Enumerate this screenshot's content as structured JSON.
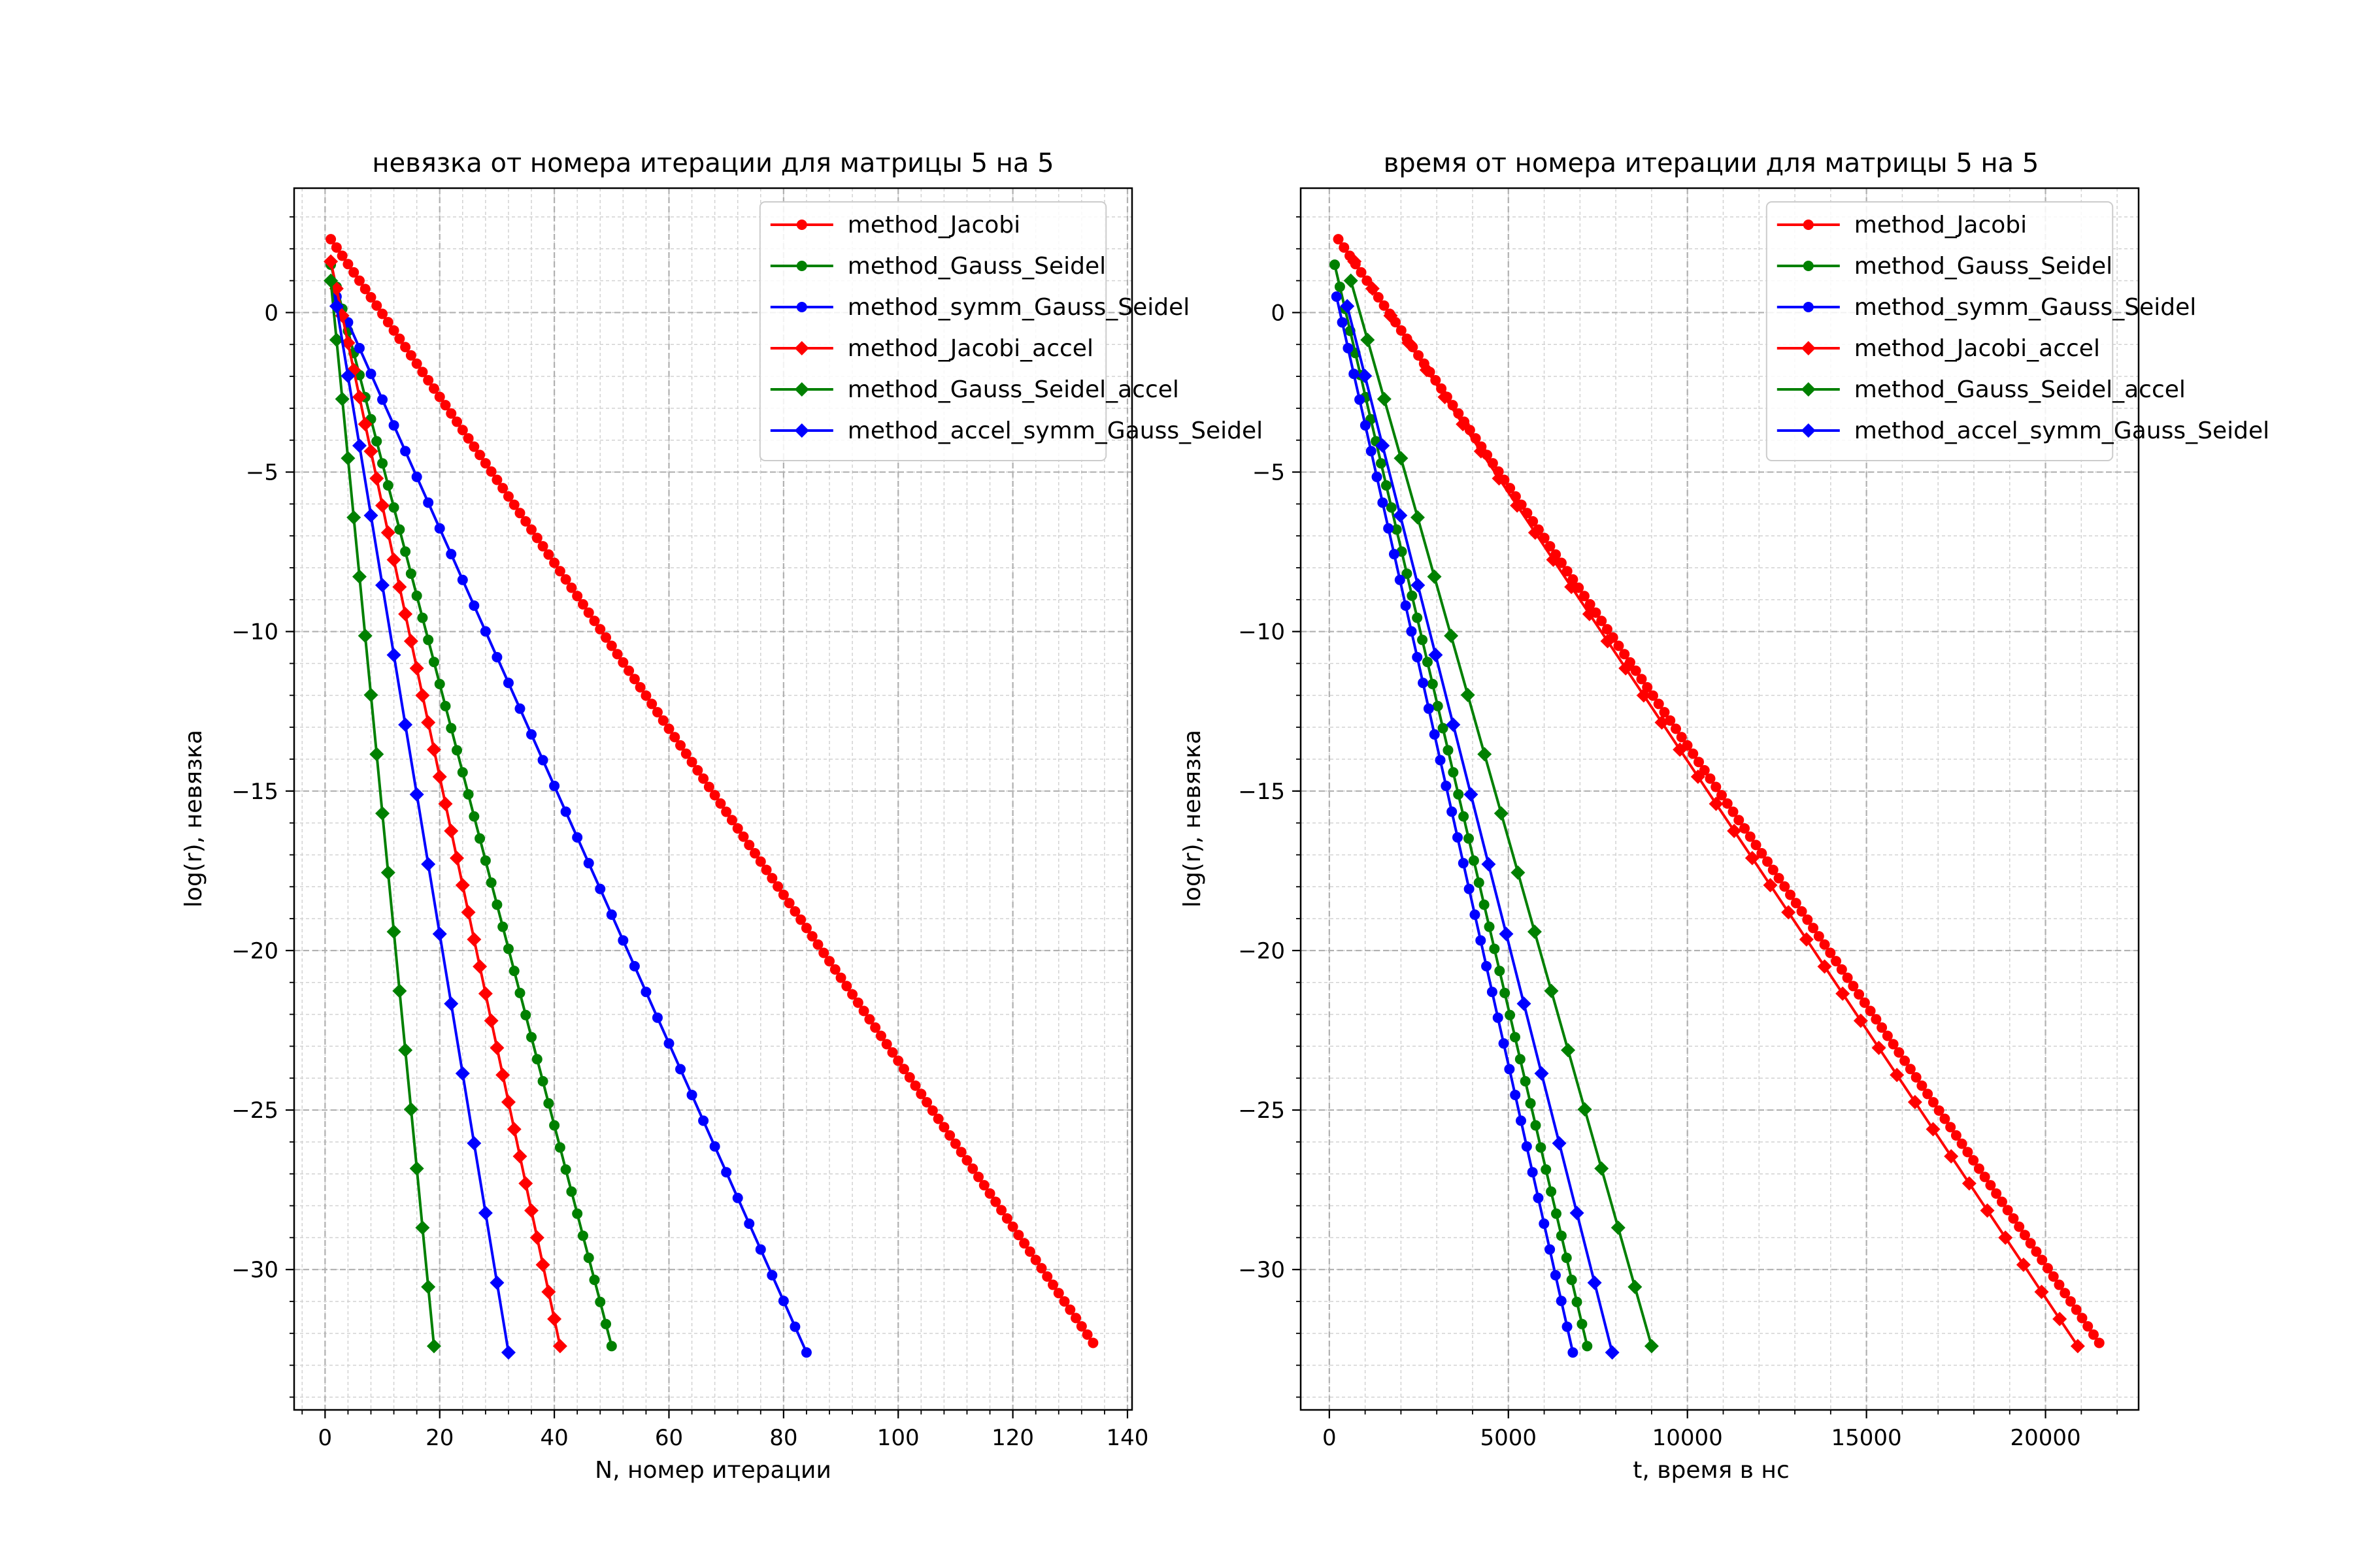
{
  "chart_data": [
    {
      "type": "line",
      "title": "невязка от номера итерации для матрицы 5 на 5",
      "xlabel": "N, номер итерации",
      "ylabel": "log(r), невязка",
      "xlim": [
        -5.4,
        140.8
      ],
      "ylim": [
        -34.4,
        3.9
      ],
      "xticks": [
        0,
        20,
        40,
        60,
        80,
        100,
        120,
        140
      ],
      "yticks": [
        0,
        -5,
        -10,
        -15,
        -20,
        -25,
        -30
      ],
      "grid": true,
      "minor_grid": true,
      "legend_position": "top-right",
      "series": [
        {
          "name": "method_Jacobi",
          "color": "#ff0000",
          "marker": "circle",
          "x_start": 1,
          "x_end": 134,
          "n": 134,
          "y_start": 2.3,
          "y_end": -32.3
        },
        {
          "name": "method_Gauss_Seidel",
          "color": "#008000",
          "marker": "circle",
          "x_start": 1,
          "x_end": 50,
          "n": 50,
          "y_start": 1.5,
          "y_end": -32.4
        },
        {
          "name": "method_symm_Gauss_Seidel",
          "color": "#0000ff",
          "marker": "circle",
          "x_start": 2,
          "x_end": 84,
          "n": 42,
          "y_start": 0.5,
          "y_end": -32.6
        },
        {
          "name": "method_Jacobi_accel",
          "color": "#ff0000",
          "marker": "diamond",
          "x_start": 1,
          "x_end": 41,
          "n": 41,
          "y_start": 1.6,
          "y_end": -32.4
        },
        {
          "name": "method_Gauss_Seidel_accel",
          "color": "#008000",
          "marker": "diamond",
          "x_start": 1,
          "x_end": 19,
          "n": 19,
          "y_start": 1.0,
          "y_end": -32.4
        },
        {
          "name": "method_accel_symm_Gauss_Seidel",
          "color": "#0000ff",
          "marker": "diamond",
          "x_start": 2,
          "x_end": 32,
          "n": 16,
          "y_start": 0.2,
          "y_end": -32.6
        }
      ]
    },
    {
      "type": "line",
      "title": "время от номера итерации для матрицы 5 на 5",
      "xlabel": "t, время в нс",
      "ylabel": "log(r), невязка",
      "xlim": [
        -800,
        22600
      ],
      "ylim": [
        -34.4,
        3.9
      ],
      "xticks": [
        0,
        5000,
        10000,
        15000,
        20000
      ],
      "yticks": [
        0,
        -5,
        -10,
        -15,
        -20,
        -25,
        -30
      ],
      "grid": true,
      "minor_grid": true,
      "legend_position": "top-right",
      "series": [
        {
          "name": "method_Jacobi",
          "color": "#ff0000",
          "marker": "circle",
          "x_start": 250,
          "x_end": 21500,
          "n": 134,
          "y_start": 2.3,
          "y_end": -32.3
        },
        {
          "name": "method_Gauss_Seidel",
          "color": "#008000",
          "marker": "circle",
          "x_start": 150,
          "x_end": 7200,
          "n": 50,
          "y_start": 1.5,
          "y_end": -32.4
        },
        {
          "name": "method_symm_Gauss_Seidel",
          "color": "#0000ff",
          "marker": "circle",
          "x_start": 200,
          "x_end": 6800,
          "n": 42,
          "y_start": 0.5,
          "y_end": -32.6
        },
        {
          "name": "method_Jacobi_accel",
          "color": "#ff0000",
          "marker": "diamond",
          "x_start": 700,
          "x_end": 20900,
          "n": 41,
          "y_start": 1.6,
          "y_end": -32.4
        },
        {
          "name": "method_Gauss_Seidel_accel",
          "color": "#008000",
          "marker": "diamond",
          "x_start": 600,
          "x_end": 9000,
          "n": 19,
          "y_start": 1.0,
          "y_end": -32.4
        },
        {
          "name": "method_accel_symm_Gauss_Seidel",
          "color": "#0000ff",
          "marker": "diamond",
          "x_start": 500,
          "x_end": 7900,
          "n": 16,
          "y_start": 0.2,
          "y_end": -32.6
        }
      ]
    }
  ]
}
